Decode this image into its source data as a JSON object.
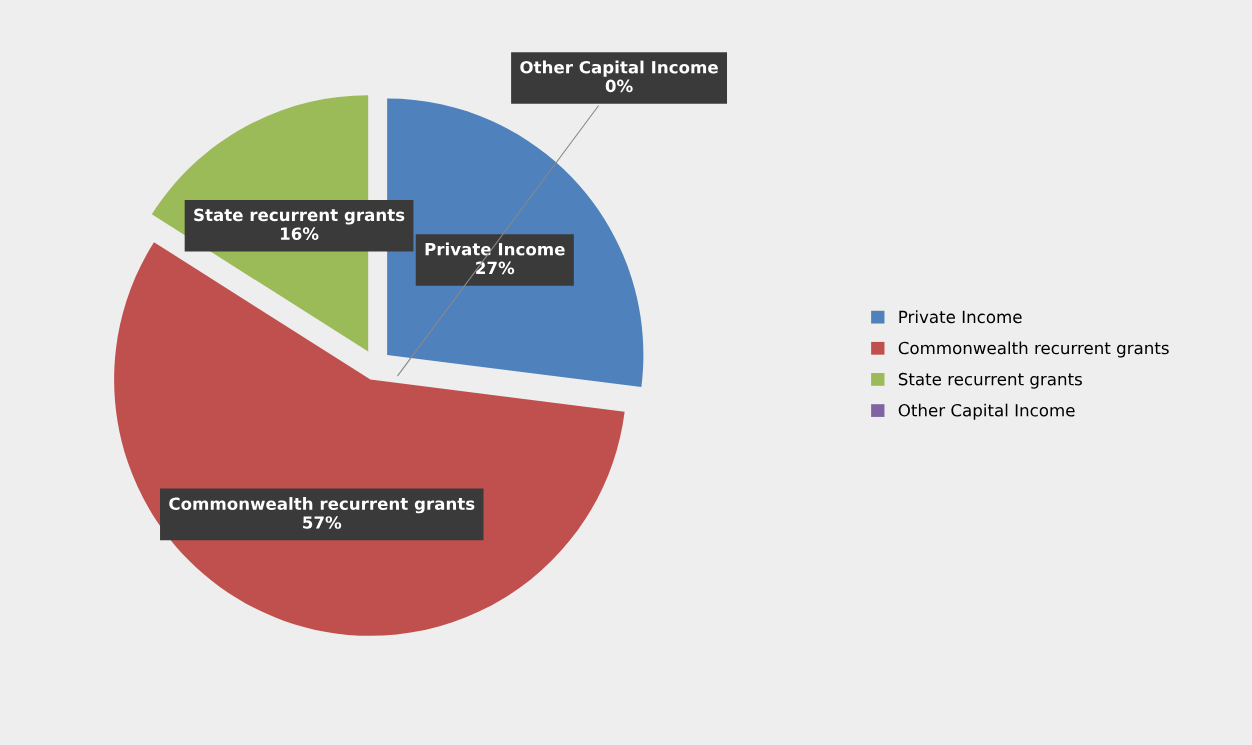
{
  "chart_data": {
    "type": "pie",
    "categories": [
      "Private Income",
      "Commonwealth recurrent grants",
      "State recurrent grants",
      "Other Capital Income"
    ],
    "values": [
      27,
      57,
      16,
      0
    ],
    "colors": [
      "#4f81bd",
      "#c0504d",
      "#9bbb59",
      "#8064a2"
    ],
    "value_labels": [
      "27%",
      "57%",
      "16%",
      "0%"
    ],
    "legend": "right"
  }
}
